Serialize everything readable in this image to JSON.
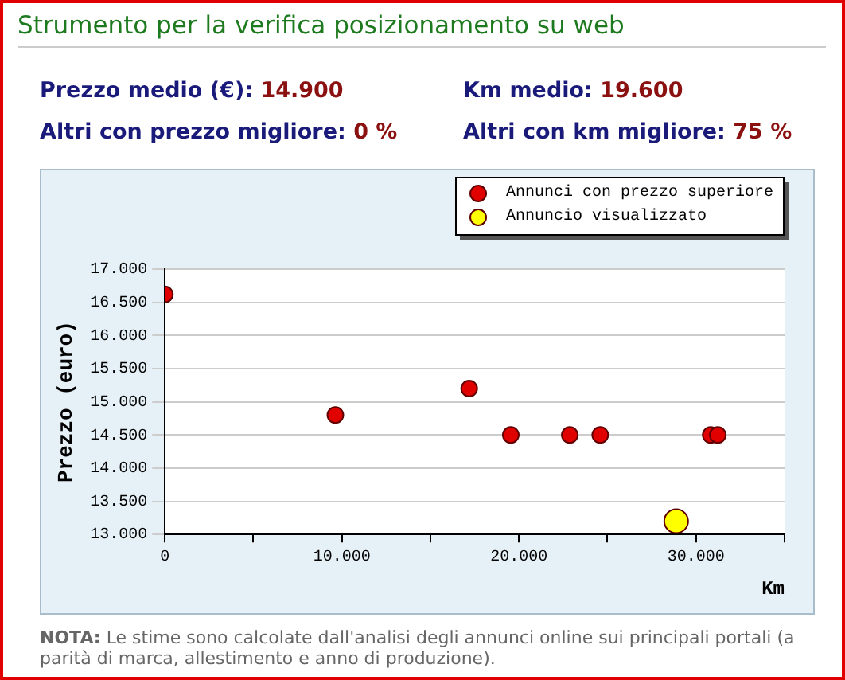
{
  "chart_data": {
    "type": "scatter",
    "title": "Strumento per la verifica posizionamento su web",
    "annotations": [
      "Prezzo medio (€): 14.900",
      "Km medio: 19.600",
      "Altri con prezzo migliore: 0 %",
      "Altri con km migliore: 75 %",
      "NOTA: Le stime sono calcolate dall'analisi degli annunci online sui principali portali (a parità di marca, allestimento e anno di produzione)."
    ],
    "xlabel": "Km",
    "ylabel": "Prezzo (euro)",
    "series": [
      {
        "name": "Annunci con prezzo superiore",
        "color": "#e00000",
        "x": [
          0,
          9630,
          17190,
          19540,
          22870,
          24590,
          30830,
          31230
        ],
        "values": [
          16620,
          14800,
          15200,
          14500,
          14500,
          14500,
          14500,
          14500
        ]
      },
      {
        "name": "Annuncio visualizzato",
        "color": "#ffff00",
        "x": [
          28880
        ],
        "values": [
          13200
        ]
      }
    ],
    "xlim": [
      0,
      35000
    ],
    "xticks": [
      0,
      {
        "value": 5000,
        "label": null
      },
      "10.000",
      {
        "value": 15000,
        "label": null
      },
      {
        "value": 20000,
        "label": "20.000"
      },
      {
        "value": 25000,
        "label": null
      },
      {
        "value": 30000,
        "label": "30.000"
      },
      {
        "value": 35000,
        "label": null
      }
    ],
    "ylim": [
      13000,
      17000
    ],
    "yticks": [
      {
        "value": 13000,
        "label": "13.000"
      },
      {
        "value": 13500,
        "label": "13.500"
      },
      {
        "value": 14000,
        "label": "14.000"
      },
      {
        "value": 14500,
        "label": "14.500"
      },
      {
        "value": 15000,
        "label": "15.000"
      },
      {
        "value": 15500,
        "label": "15.500"
      },
      {
        "value": 16000,
        "label": "16.000"
      },
      {
        "value": 16500,
        "label": "16.500"
      },
      {
        "value": 17000,
        "label": "17.000"
      }
    ],
    "grid": "y",
    "legend": "top right",
    "marker": "circle"
  }
}
